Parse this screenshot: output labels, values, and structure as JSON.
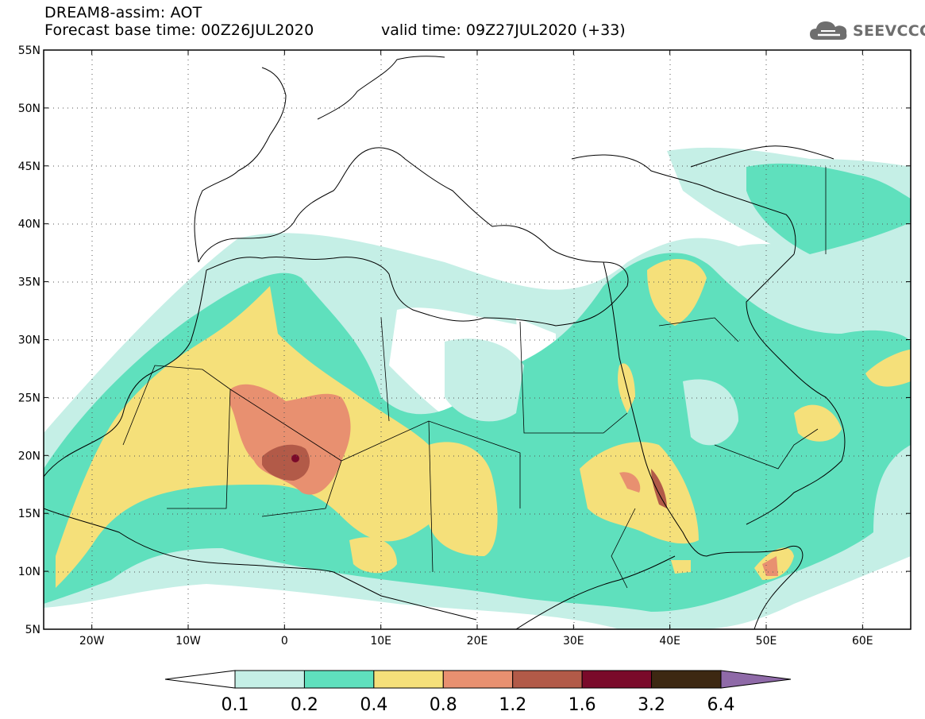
{
  "header": {
    "title": "DREAM8-assim: AOT",
    "base_time": "Forecast base time: 00Z26JUL2020",
    "valid_time": "valid time: 09Z27JUL2020 (+33)"
  },
  "logo": {
    "text": "SEEVCCC",
    "icon": "cloud-icon"
  },
  "map": {
    "lat_labels": [
      "55N",
      "50N",
      "45N",
      "40N",
      "35N",
      "30N",
      "25N",
      "20N",
      "15N",
      "10N",
      "5N"
    ],
    "lon_labels": [
      "20W",
      "10W",
      "0",
      "10E",
      "20E",
      "30E",
      "40E",
      "50E",
      "60E"
    ],
    "lon_range": [
      -25,
      65
    ],
    "lat_range": [
      5,
      55
    ],
    "grid": "dotted"
  },
  "colorbar": {
    "labels": [
      "0.1",
      "0.2",
      "0.4",
      "0.8",
      "1.2",
      "1.6",
      "3.2",
      "6.4"
    ],
    "colors": [
      "#ffffff",
      "#c5efe6",
      "#5fe0bd",
      "#f5e07a",
      "#e89070",
      "#b25a48",
      "#7a0a2a",
      "#3d2812",
      "#8f6aa8"
    ]
  }
}
